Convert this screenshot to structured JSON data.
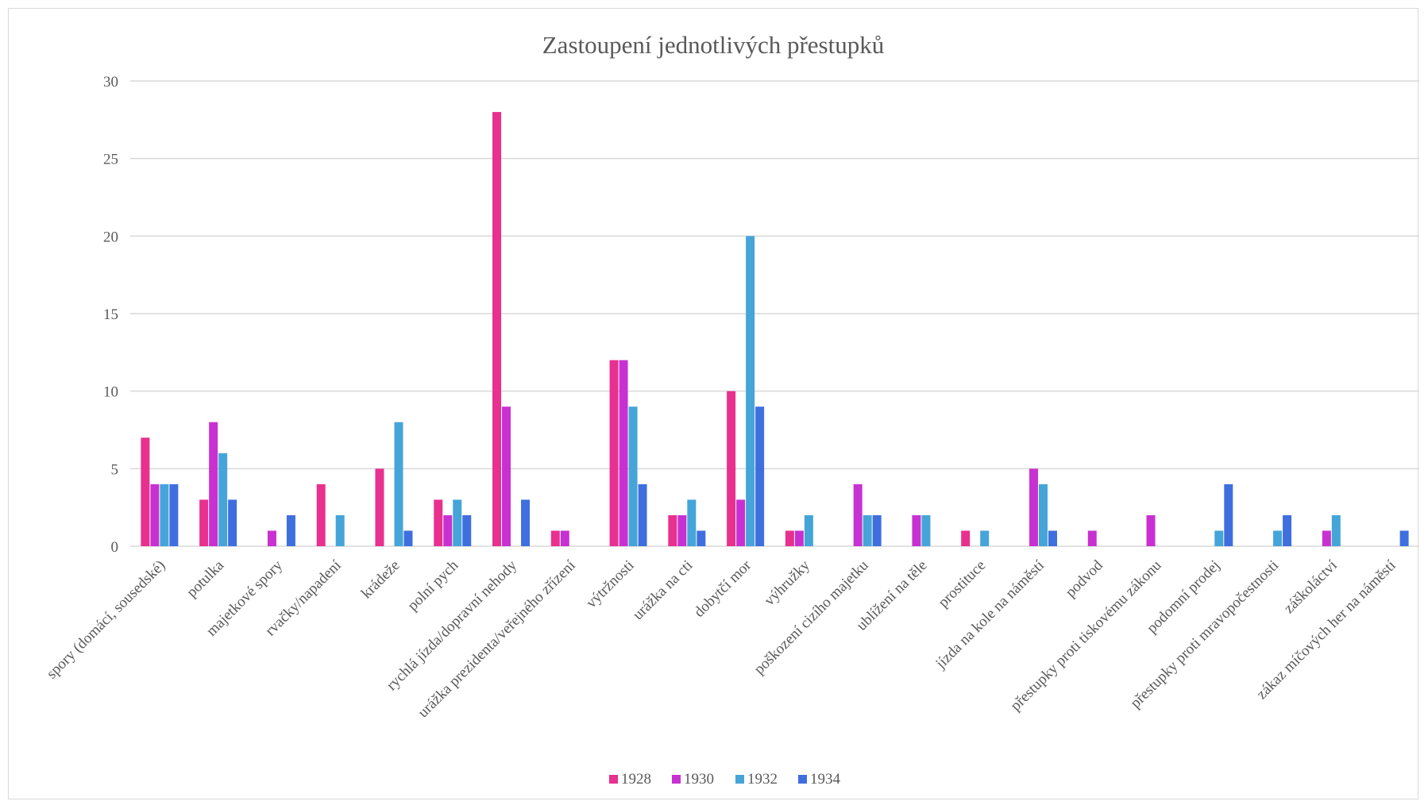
{
  "chart_data": {
    "type": "bar",
    "title": "Zastoupení  jednotlivých  přestupků",
    "xlabel": "",
    "ylabel": "",
    "ylim": [
      0,
      30
    ],
    "yticks": [
      0,
      5,
      10,
      15,
      20,
      25,
      30
    ],
    "grid": true,
    "legend_position": "bottom",
    "categories": [
      "spory (domácí, sousedské)",
      "potulka",
      "majetkové spory",
      "rvačky/napadení",
      "krádeže",
      "polní pych",
      "rychlá jízda/dopravní nehody",
      "urážka prezidenta/veřejného zřízení",
      "výtržnosti",
      "urážka na cti",
      "dobytčí mor",
      "výhružky",
      "poškození cizího majetku",
      "ublížení na těle",
      "prostituce",
      "jízda na kole na náměstí",
      "podvod",
      "přestupky proti tiskovému zákonu",
      "podomní prodej",
      "přestupky proti mravopočestnosti",
      "záškoláctví",
      "zákaz míčových her na náměstí"
    ],
    "series": [
      {
        "name": "1928",
        "color": "#e8308f",
        "values": [
          7,
          3,
          0,
          4,
          5,
          3,
          28,
          1,
          12,
          2,
          10,
          1,
          0,
          0,
          1,
          0,
          0,
          0,
          0,
          0,
          0,
          0
        ]
      },
      {
        "name": "1930",
        "color": "#c831d1",
        "values": [
          4,
          8,
          1,
          0,
          0,
          2,
          9,
          1,
          12,
          2,
          3,
          1,
          4,
          2,
          0,
          5,
          1,
          2,
          0,
          0,
          1,
          0
        ]
      },
      {
        "name": "1932",
        "color": "#45a5d9",
        "values": [
          4,
          6,
          0,
          2,
          8,
          3,
          0,
          0,
          9,
          3,
          20,
          2,
          2,
          2,
          1,
          4,
          0,
          0,
          1,
          1,
          2,
          0
        ]
      },
      {
        "name": "1934",
        "color": "#3f6fdf",
        "values": [
          4,
          3,
          2,
          0,
          1,
          2,
          3,
          0,
          4,
          1,
          9,
          0,
          2,
          0,
          0,
          1,
          0,
          0,
          4,
          2,
          0,
          1
        ]
      }
    ]
  }
}
